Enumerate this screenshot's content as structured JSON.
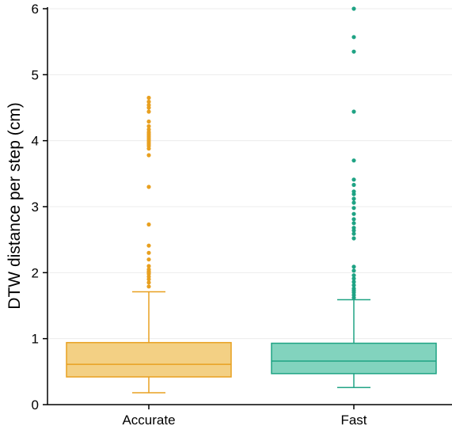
{
  "chart_data": {
    "type": "box",
    "title": "",
    "xlabel": "",
    "ylabel": "DTW distance per step (cm)",
    "ylim": [
      0,
      6
    ],
    "yticks": [
      0,
      1,
      2,
      3,
      4,
      5,
      6
    ],
    "grid": "horizontal",
    "categories": [
      "Accurate",
      "Fast"
    ],
    "boxes": [
      {
        "category": "Accurate",
        "color": "#E8A020",
        "fill": "#F3D084",
        "whisker_low": 0.18,
        "q1": 0.42,
        "median": 0.61,
        "q3": 0.94,
        "whisker_high": 1.71,
        "outliers": [
          1.79,
          1.85,
          1.9,
          1.94,
          1.98,
          2.0,
          2.02,
          2.05,
          2.1,
          2.2,
          2.3,
          2.41,
          2.73,
          3.3,
          3.78,
          3.88,
          3.92,
          3.95,
          3.98,
          4.01,
          4.04,
          4.07,
          4.1,
          4.13,
          4.17,
          4.22,
          4.29,
          4.44,
          4.5,
          4.54,
          4.59,
          4.65
        ]
      },
      {
        "category": "Fast",
        "color": "#1FA384",
        "fill": "#82D3BE",
        "whisker_low": 0.26,
        "q1": 0.47,
        "median": 0.66,
        "q3": 0.93,
        "whisker_high": 1.59,
        "outliers": [
          1.62,
          1.66,
          1.7,
          1.73,
          1.76,
          1.81,
          1.86,
          1.91,
          1.96,
          2.03,
          2.09,
          2.52,
          2.59,
          2.64,
          2.68,
          2.75,
          2.81,
          2.89,
          2.98,
          3.06,
          3.12,
          3.19,
          3.23,
          3.33,
          3.41,
          3.7,
          4.44,
          5.35,
          5.57,
          6.0
        ]
      }
    ]
  }
}
